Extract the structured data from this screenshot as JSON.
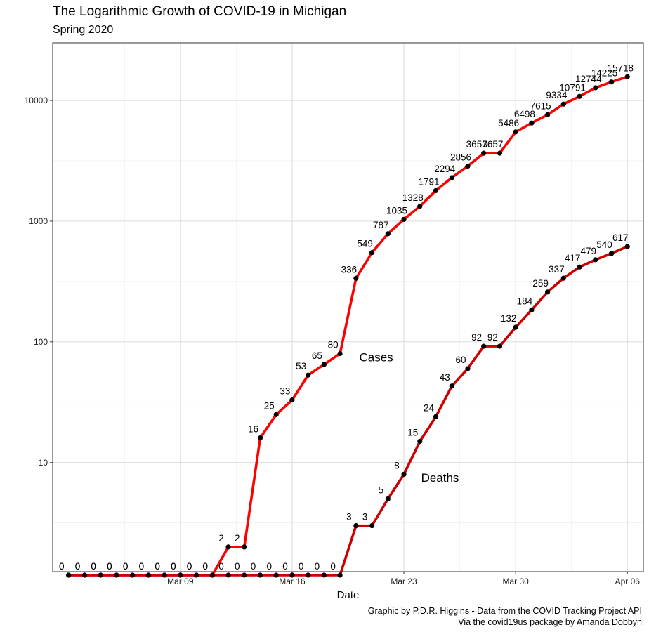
{
  "chart_data": {
    "type": "line",
    "title": "The Logarithmic Growth of COVID-19 in Michigan",
    "subtitle": "Spring 2020",
    "xlabel": "Date",
    "ylabel": "",
    "y_scale": "log10",
    "ylim": [
      1.25,
      30000
    ],
    "y_ticks": [
      10,
      100,
      1000,
      10000
    ],
    "y_tick_labels": [
      "10",
      "100",
      "1000",
      "10000"
    ],
    "x_range": [
      "2020-03-01",
      "2020-04-07"
    ],
    "x_ticks": [
      "2020-03-09",
      "2020-03-16",
      "2020-03-23",
      "2020-03-30",
      "2020-04-06"
    ],
    "x_tick_labels": [
      "Mar 09",
      "Mar 16",
      "Mar 23",
      "Mar 30",
      "Apr 06"
    ],
    "grid": true,
    "background": "#ffffff",
    "colors": {
      "cases": "#ff0000",
      "deaths": "#cc0000",
      "points": "#000000"
    },
    "series": [
      {
        "key": "cases",
        "annotation": "Cases",
        "annotation_at": [
          "2020-03-21",
          75
        ],
        "start_date": "2020-03-02",
        "values": [
          0,
          0,
          0,
          0,
          0,
          0,
          0,
          0,
          0,
          0,
          2,
          2,
          16,
          25,
          33,
          53,
          65,
          80,
          336,
          549,
          787,
          1035,
          1328,
          1791,
          2294,
          2856,
          3657,
          3657,
          5486,
          6498,
          7615,
          9334,
          10791,
          12744,
          14225,
          15718
        ],
        "labels": [
          "0",
          "0",
          "0",
          "0",
          "0",
          "0",
          "0",
          "0",
          "0",
          "0",
          "2",
          "2",
          "16",
          "25",
          "33",
          "53",
          "65",
          "80",
          "336",
          "549",
          "787",
          "1035",
          "1328",
          "1791",
          "2294",
          "2856",
          "3657",
          "3657",
          "5486",
          "6498",
          "7615",
          "9334",
          "10791",
          "12744",
          "14225",
          "15718"
        ]
      },
      {
        "key": "deaths",
        "annotation": "Deaths",
        "annotation_at": [
          "2020-03-25",
          7.5
        ],
        "start_date": "2020-03-02",
        "values": [
          0,
          0,
          0,
          0,
          0,
          0,
          0,
          0,
          0,
          0,
          0,
          0,
          0,
          0,
          0,
          0,
          0,
          0,
          3,
          3,
          5,
          8,
          15,
          24,
          43,
          60,
          92,
          92,
          132,
          184,
          259,
          337,
          417,
          479,
          540,
          617
        ],
        "labels": [
          "0",
          "0",
          "0",
          "0",
          "0",
          "0",
          "0",
          "0",
          "0",
          "0",
          "0",
          "0",
          "0",
          "0",
          "0",
          "0",
          "0",
          "0",
          "3",
          "3",
          "5",
          "8",
          "15",
          "24",
          "43",
          "60",
          "92",
          "92",
          "132",
          "184",
          "259",
          "337",
          "417",
          "479",
          "540",
          "617"
        ]
      }
    ]
  },
  "caption": {
    "line1": "Graphic by P.D.R. Higgins - Data from the COVID Tracking Project API",
    "line2": "Via the covid19us package by Amanda Dobbyn"
  }
}
